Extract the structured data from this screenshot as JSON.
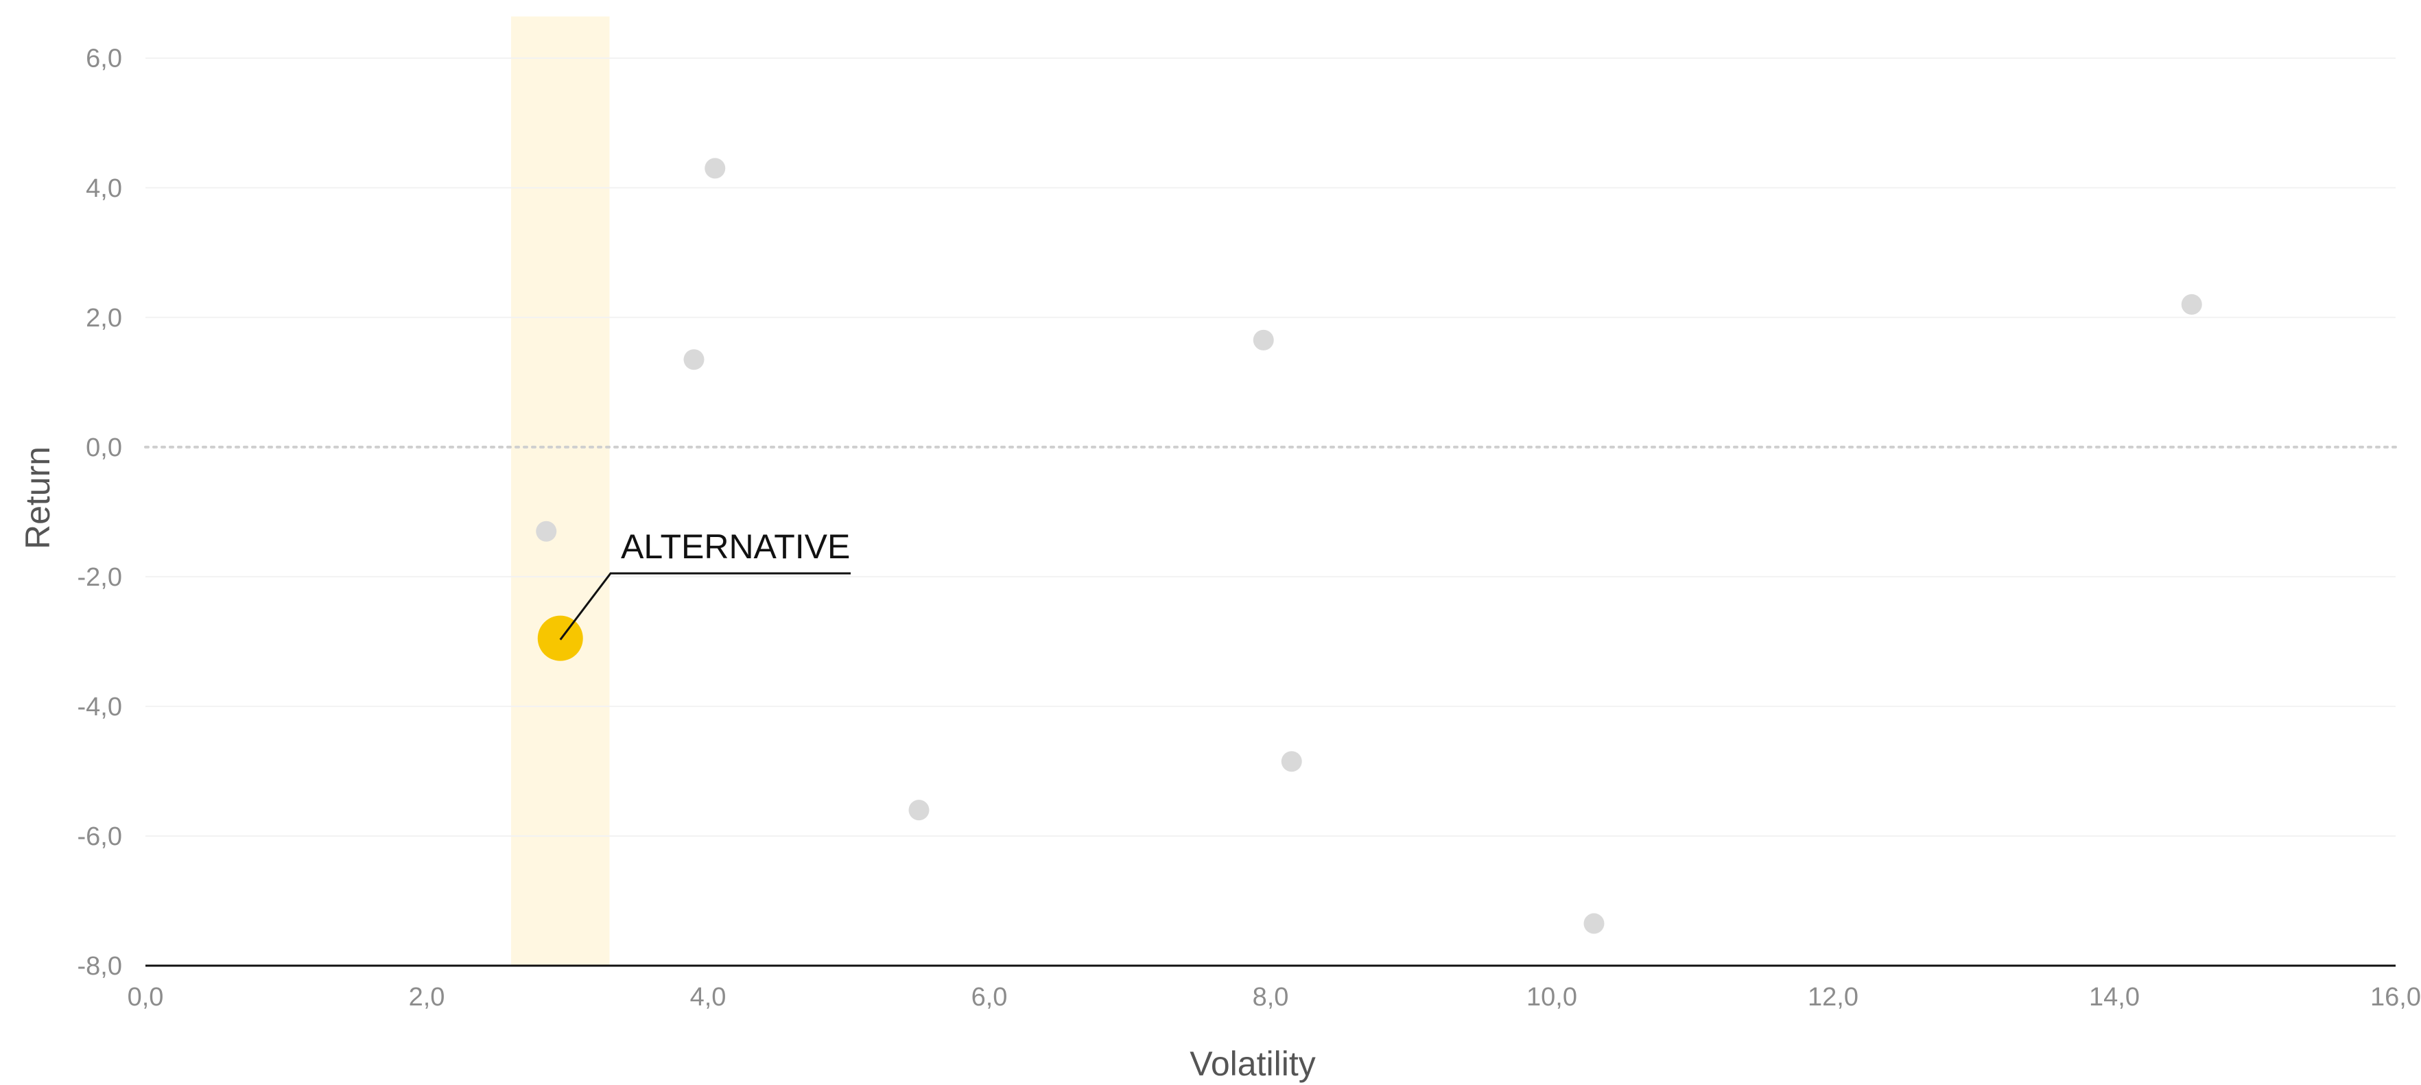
{
  "chart_data": {
    "type": "scatter",
    "title": "",
    "xlabel": "Volatility",
    "ylabel": "Return",
    "xlim": [
      0,
      16
    ],
    "ylim": [
      -8,
      6.6
    ],
    "x_ticks": [
      0,
      2,
      4,
      6,
      8,
      10,
      12,
      14,
      16
    ],
    "y_ticks": [
      6,
      4,
      2,
      0,
      -2,
      -4,
      -6,
      -8
    ],
    "x_tick_labels": [
      "0,0",
      "2,0",
      "4,0",
      "6,0",
      "8,0",
      "10,0",
      "12,0",
      "14,0",
      "16,0"
    ],
    "y_tick_labels": [
      "6,0",
      "4,0",
      "2,0",
      "0,0",
      "-2,0",
      "-4,0",
      "-6,0",
      "-8,0"
    ],
    "grid": true,
    "zero_line": "dotted",
    "highlight_band": {
      "x_from": 2.6,
      "x_to": 3.3
    },
    "points": [
      {
        "x": 4.05,
        "y": 4.3
      },
      {
        "x": 3.9,
        "y": 1.35
      },
      {
        "x": 7.95,
        "y": 1.65
      },
      {
        "x": 14.55,
        "y": 2.2
      },
      {
        "x": 2.85,
        "y": -1.3
      },
      {
        "x": 5.5,
        "y": -5.6
      },
      {
        "x": 8.15,
        "y": -4.85
      },
      {
        "x": 10.3,
        "y": -7.35
      }
    ],
    "highlighted_point": {
      "x": 2.95,
      "y": -2.95,
      "label": "ALTERNATIVE"
    },
    "colors": {
      "point": "#d9d9d9",
      "highlight": "#f7c600",
      "band": "#fff7e1",
      "axis": "#111111",
      "grid": "#f2f2f2",
      "zero_line": "#cfcfcf"
    }
  }
}
